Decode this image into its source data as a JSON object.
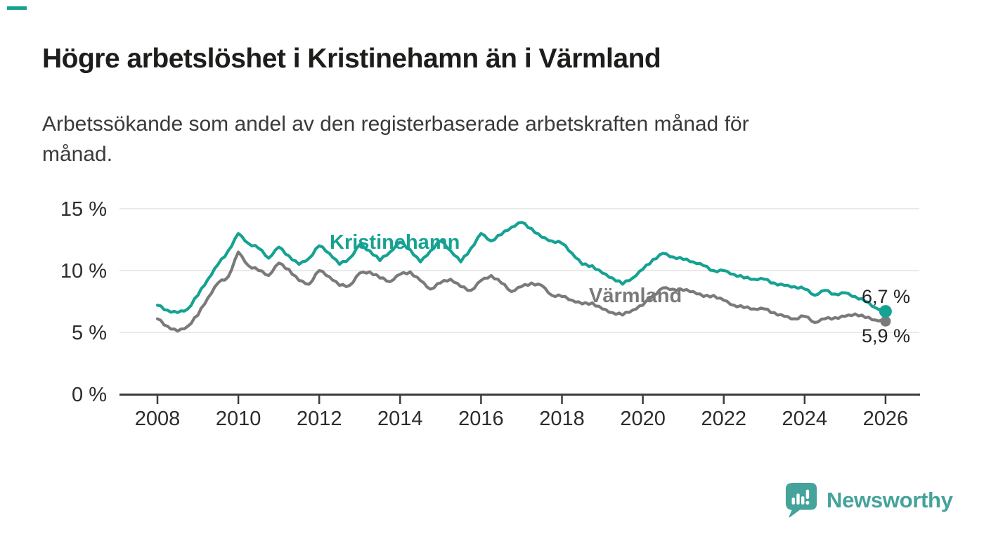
{
  "page": {
    "title": "Högre arbetslöshet i Kristinehamn än i Värmland",
    "subtitle_line1": "Arbetssökande som andel av den registerbaserade arbetskraften månad för",
    "subtitle_line2": "månad.",
    "accent_color": "#16a292",
    "background_color": "#ffffff"
  },
  "branding": {
    "logo_text": "Newsworthy",
    "logo_color": "#45a39b",
    "logo_icon": "speech-bubble-bar-chart-icon"
  },
  "chart_data": {
    "type": "line",
    "title": "",
    "xlabel": "",
    "ylabel": "",
    "x_unit": "decimal year (quarterly samples of monthly series)",
    "ylim": [
      0,
      15.8
    ],
    "xlim": [
      2007.05,
      2026.85
    ],
    "grid": "horizontal",
    "legend_position": "inline-labels",
    "x": [
      2008,
      2008.25,
      2008.5,
      2008.75,
      2009,
      2009.25,
      2009.5,
      2009.75,
      2010,
      2010.25,
      2010.5,
      2010.75,
      2011,
      2011.25,
      2011.5,
      2011.75,
      2012,
      2012.25,
      2012.5,
      2012.75,
      2013,
      2013.25,
      2013.5,
      2013.75,
      2014,
      2014.25,
      2014.5,
      2014.75,
      2015,
      2015.25,
      2015.5,
      2015.75,
      2016,
      2016.25,
      2016.5,
      2016.75,
      2017,
      2017.25,
      2017.5,
      2017.75,
      2018,
      2018.25,
      2018.5,
      2018.75,
      2019,
      2019.25,
      2019.5,
      2019.75,
      2020,
      2020.25,
      2020.5,
      2020.75,
      2021,
      2021.25,
      2021.5,
      2021.75,
      2022,
      2022.25,
      2022.5,
      2022.75,
      2023,
      2023.25,
      2023.5,
      2023.75,
      2024,
      2024.25,
      2024.5,
      2024.75,
      2025,
      2025.25,
      2025.5,
      2025.75,
      2026
    ],
    "series": [
      {
        "name": "Kristinehamn",
        "color": "#16a292",
        "end_label": "6,7 %",
        "end_value": 6.7,
        "values": [
          7.2,
          6.8,
          6.6,
          6.9,
          8.0,
          9.3,
          10.5,
          11.6,
          13.0,
          12.2,
          11.8,
          11.0,
          11.9,
          11.2,
          10.5,
          11.0,
          12.0,
          11.4,
          10.5,
          11.0,
          12.1,
          11.6,
          10.8,
          11.5,
          12.3,
          11.7,
          10.7,
          11.6,
          12.4,
          11.6,
          10.7,
          11.8,
          13.0,
          12.4,
          12.9,
          13.5,
          13.9,
          13.4,
          12.7,
          12.4,
          12.2,
          11.4,
          10.5,
          10.4,
          9.8,
          9.4,
          8.9,
          9.4,
          10.1,
          10.9,
          11.4,
          11.1,
          10.9,
          10.7,
          10.4,
          10.0,
          10.0,
          9.7,
          9.4,
          9.3,
          9.3,
          9.0,
          8.8,
          8.7,
          8.5,
          8.0,
          8.4,
          8.1,
          8.2,
          7.9,
          7.5,
          7.0,
          6.7
        ]
      },
      {
        "name": "Värmland",
        "color": "#7a7a7a",
        "end_label": "5,9 %",
        "end_value": 5.9,
        "values": [
          6.1,
          5.5,
          5.1,
          5.5,
          6.4,
          7.8,
          9.0,
          9.5,
          11.5,
          10.4,
          10.0,
          9.6,
          10.6,
          10.1,
          9.2,
          8.9,
          10.0,
          9.5,
          8.8,
          8.8,
          9.8,
          9.9,
          9.4,
          9.1,
          9.7,
          9.9,
          9.2,
          8.5,
          9.0,
          9.3,
          8.7,
          8.4,
          9.2,
          9.6,
          9.0,
          8.3,
          8.7,
          9.0,
          8.8,
          8.0,
          7.9,
          7.6,
          7.3,
          7.4,
          6.9,
          6.6,
          6.4,
          6.8,
          7.2,
          8.0,
          8.6,
          8.5,
          8.4,
          8.3,
          7.9,
          8.0,
          7.6,
          7.2,
          7.0,
          6.9,
          6.9,
          6.6,
          6.3,
          6.1,
          6.3,
          5.8,
          6.1,
          6.2,
          6.3,
          6.5,
          6.2,
          6.0,
          5.9
        ]
      }
    ],
    "y_ticks": [
      {
        "value": 0,
        "label": "0 %"
      },
      {
        "value": 5,
        "label": "5 %"
      },
      {
        "value": 10,
        "label": "10 %"
      },
      {
        "value": 15,
        "label": "15 %"
      }
    ],
    "x_ticks": [
      {
        "value": 2008,
        "label": "2008"
      },
      {
        "value": 2010,
        "label": "2010"
      },
      {
        "value": 2012,
        "label": "2012"
      },
      {
        "value": 2014,
        "label": "2014"
      },
      {
        "value": 2016,
        "label": "2016"
      },
      {
        "value": 2018,
        "label": "2018"
      },
      {
        "value": 2020,
        "label": "2020"
      },
      {
        "value": 2022,
        "label": "2022"
      },
      {
        "value": 2024,
        "label": "2024"
      },
      {
        "value": 2026,
        "label": "2026"
      }
    ],
    "colors": {
      "grid": "#e4e4e4",
      "axis": "#3d3d3d",
      "tick_label": "#2c2c2c",
      "end_label_text": "#232323"
    }
  }
}
